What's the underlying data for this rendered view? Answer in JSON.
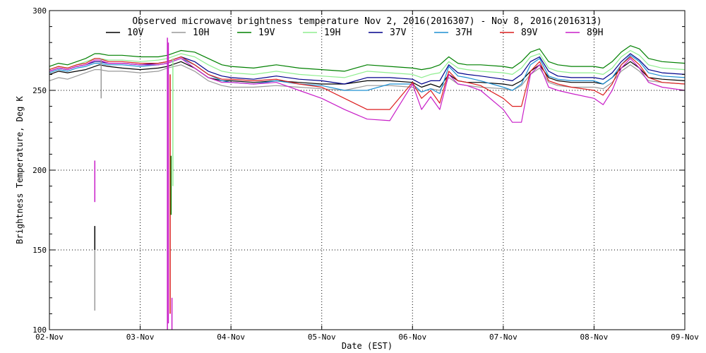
{
  "chart_data": {
    "type": "line",
    "title": "Observed microwave brightness temperature Nov  2, 2016(2016307) - Nov  8, 2016(2016313)",
    "xlabel": "Date (EST)",
    "ylabel": "Brightness Temperature, Deg K",
    "xlim": [
      0,
      7
    ],
    "ylim": [
      100,
      300
    ],
    "grid": true,
    "legend_position": "top",
    "x_ticks": [
      {
        "x": 0,
        "label": "02-Nov"
      },
      {
        "x": 1,
        "label": "03-Nov"
      },
      {
        "x": 2,
        "label": "04-Nov"
      },
      {
        "x": 3,
        "label": "05-Nov"
      },
      {
        "x": 4,
        "label": "06-Nov"
      },
      {
        "x": 5,
        "label": "07-Nov"
      },
      {
        "x": 6,
        "label": "08-Nov"
      },
      {
        "x": 7,
        "label": "09-Nov"
      }
    ],
    "y_ticks": [
      {
        "y": 100,
        "label": "100"
      },
      {
        "y": 150,
        "label": "150"
      },
      {
        "y": 200,
        "label": "200"
      },
      {
        "y": 250,
        "label": "250"
      },
      {
        "y": 300,
        "label": "300"
      }
    ],
    "series": [
      {
        "name": "10V",
        "color": "#000000",
        "x": [
          0,
          0.1,
          0.2,
          0.3,
          0.4,
          0.5,
          0.55,
          0.65,
          0.8,
          1,
          1.2,
          1.3,
          1.45,
          1.6,
          1.75,
          1.9,
          2,
          2.25,
          2.5,
          2.75,
          3,
          3.25,
          3.5,
          3.75,
          4,
          4.1,
          4.2,
          4.3,
          4.4,
          4.5,
          4.6,
          4.75,
          5,
          5.1,
          5.2,
          5.3,
          5.4,
          5.5,
          5.6,
          5.75,
          6,
          6.1,
          6.2,
          6.3,
          6.4,
          6.5,
          6.6,
          6.75,
          7
        ],
        "y": [
          260,
          262,
          261,
          262,
          263,
          265,
          266,
          265,
          264,
          263,
          264,
          265,
          268,
          264,
          258,
          256,
          256,
          255,
          256,
          255,
          254,
          254,
          256,
          256,
          255,
          252,
          254,
          252,
          260,
          256,
          255,
          255,
          254,
          253,
          256,
          262,
          266,
          258,
          256,
          255,
          255,
          254,
          258,
          264,
          268,
          264,
          258,
          257,
          256
        ]
      },
      {
        "name": "10H",
        "color": "#999999",
        "x": [
          0,
          0.1,
          0.2,
          0.3,
          0.4,
          0.5,
          0.55,
          0.65,
          0.8,
          1,
          1.2,
          1.3,
          1.45,
          1.6,
          1.75,
          1.9,
          2,
          2.25,
          2.5,
          2.75,
          3,
          3.25,
          3.5,
          3.75,
          4,
          4.1,
          4.2,
          4.3,
          4.4,
          4.5,
          4.6,
          4.75,
          5,
          5.1,
          5.2,
          5.3,
          5.4,
          5.5,
          5.6,
          5.75,
          6,
          6.1,
          6.2,
          6.3,
          6.4,
          6.5,
          6.6,
          6.75,
          7
        ],
        "y": [
          256,
          258,
          257,
          259,
          261,
          263,
          263,
          262,
          262,
          261,
          262,
          264,
          266,
          262,
          256,
          253,
          252,
          252,
          253,
          252,
          251,
          250,
          253,
          253,
          252,
          249,
          251,
          250,
          258,
          254,
          253,
          252,
          251,
          250,
          253,
          260,
          264,
          255,
          253,
          252,
          252,
          251,
          255,
          262,
          266,
          262,
          256,
          255,
          254
        ]
      },
      {
        "name": "19V",
        "color": "#008000",
        "x": [
          0,
          0.1,
          0.2,
          0.3,
          0.4,
          0.5,
          0.55,
          0.65,
          0.8,
          1,
          1.2,
          1.3,
          1.45,
          1.6,
          1.75,
          1.9,
          2,
          2.25,
          2.5,
          2.75,
          3,
          3.25,
          3.5,
          3.75,
          4,
          4.1,
          4.2,
          4.3,
          4.4,
          4.5,
          4.6,
          4.75,
          5,
          5.1,
          5.2,
          5.3,
          5.4,
          5.5,
          5.6,
          5.75,
          6,
          6.1,
          6.2,
          6.3,
          6.4,
          6.5,
          6.6,
          6.75,
          7
        ],
        "y": [
          265,
          267,
          266,
          268,
          270,
          273,
          273,
          272,
          272,
          271,
          271,
          272,
          275,
          274,
          270,
          266,
          265,
          264,
          266,
          264,
          263,
          262,
          266,
          265,
          264,
          263,
          264,
          266,
          271,
          267,
          266,
          266,
          265,
          264,
          268,
          274,
          276,
          268,
          266,
          265,
          265,
          264,
          268,
          274,
          278,
          276,
          270,
          268,
          267
        ]
      },
      {
        "name": "19H",
        "color": "#90ee90",
        "x": [
          0,
          0.1,
          0.2,
          0.3,
          0.4,
          0.5,
          0.55,
          0.65,
          0.8,
          1,
          1.2,
          1.3,
          1.45,
          1.6,
          1.75,
          1.9,
          2,
          2.25,
          2.5,
          2.75,
          3,
          3.25,
          3.5,
          3.75,
          4,
          4.1,
          4.2,
          4.3,
          4.4,
          4.5,
          4.6,
          4.75,
          5,
          5.1,
          5.2,
          5.3,
          5.4,
          5.5,
          5.6,
          5.75,
          6,
          6.1,
          6.2,
          6.3,
          6.4,
          6.5,
          6.6,
          6.75,
          7
        ],
        "y": [
          263,
          265,
          264,
          266,
          268,
          270,
          270,
          269,
          269,
          268,
          269,
          270,
          273,
          271,
          266,
          262,
          261,
          260,
          262,
          260,
          259,
          258,
          262,
          261,
          260,
          258,
          260,
          261,
          268,
          264,
          263,
          262,
          261,
          260,
          264,
          271,
          273,
          264,
          262,
          261,
          261,
          260,
          264,
          271,
          275,
          272,
          266,
          264,
          263
        ]
      },
      {
        "name": "37V",
        "color": "#00008b",
        "x": [
          0,
          0.1,
          0.2,
          0.3,
          0.4,
          0.5,
          0.55,
          0.65,
          0.8,
          1,
          1.2,
          1.3,
          1.45,
          1.6,
          1.75,
          1.9,
          2,
          2.25,
          2.5,
          2.75,
          3,
          3.25,
          3.5,
          3.75,
          4,
          4.1,
          4.2,
          4.3,
          4.4,
          4.5,
          4.6,
          4.75,
          5,
          5.1,
          5.2,
          5.3,
          5.4,
          5.5,
          5.6,
          5.75,
          6,
          6.1,
          6.2,
          6.3,
          6.4,
          6.5,
          6.6,
          6.75,
          7
        ],
        "y": [
          262,
          264,
          263,
          265,
          266,
          268,
          268,
          267,
          267,
          266,
          267,
          268,
          271,
          268,
          262,
          259,
          258,
          257,
          259,
          257,
          256,
          254,
          258,
          258,
          257,
          254,
          256,
          256,
          266,
          261,
          260,
          259,
          257,
          256,
          260,
          268,
          271,
          262,
          259,
          258,
          258,
          257,
          261,
          268,
          273,
          269,
          263,
          261,
          260
        ]
      },
      {
        "name": "37H",
        "color": "#1e90d2",
        "x": [
          0,
          0.1,
          0.2,
          0.3,
          0.4,
          0.5,
          0.55,
          0.65,
          0.8,
          1,
          1.2,
          1.3,
          1.45,
          1.6,
          1.75,
          1.9,
          2,
          2.25,
          2.5,
          2.75,
          3,
          3.25,
          3.5,
          3.75,
          4,
          4.1,
          4.2,
          4.3,
          4.4,
          4.5,
          4.6,
          4.75,
          5,
          5.1,
          5.2,
          5.3,
          5.4,
          5.5,
          5.6,
          5.75,
          6,
          6.1,
          6.2,
          6.3,
          6.4,
          6.5,
          6.6,
          6.75,
          7
        ],
        "y": [
          261,
          263,
          262,
          264,
          265,
          267,
          267,
          266,
          266,
          265,
          266,
          267,
          270,
          266,
          260,
          256,
          255,
          254,
          256,
          254,
          253,
          250,
          250,
          254,
          254,
          249,
          251,
          248,
          265,
          259,
          258,
          256,
          252,
          250,
          254,
          266,
          270,
          259,
          257,
          256,
          256,
          254,
          258,
          266,
          272,
          268,
          261,
          259,
          258
        ]
      },
      {
        "name": "89V",
        "color": "#dc1e1e",
        "x": [
          0,
          0.1,
          0.2,
          0.3,
          0.4,
          0.5,
          0.55,
          0.65,
          0.8,
          1,
          1.2,
          1.3,
          1.45,
          1.6,
          1.75,
          1.9,
          2,
          2.25,
          2.5,
          2.75,
          3,
          3.25,
          3.5,
          3.75,
          4,
          4.1,
          4.2,
          4.3,
          4.4,
          4.5,
          4.6,
          4.75,
          5,
          5.1,
          5.2,
          5.3,
          5.4,
          5.5,
          5.6,
          5.75,
          6,
          6.1,
          6.2,
          6.3,
          6.4,
          6.5,
          6.6,
          6.75,
          7
        ],
        "y": [
          263,
          265,
          264,
          266,
          267,
          270,
          270,
          268,
          268,
          267,
          267,
          268,
          271,
          266,
          260,
          257,
          257,
          256,
          257,
          254,
          252,
          245,
          238,
          238,
          255,
          245,
          250,
          242,
          262,
          256,
          255,
          253,
          245,
          240,
          240,
          262,
          268,
          256,
          254,
          252,
          250,
          247,
          254,
          266,
          271,
          266,
          258,
          255,
          254
        ]
      },
      {
        "name": "89H",
        "color": "#c81ec8",
        "x": [
          0,
          0.1,
          0.2,
          0.3,
          0.4,
          0.5,
          0.55,
          0.65,
          0.8,
          1,
          1.2,
          1.3,
          1.45,
          1.6,
          1.75,
          1.9,
          2,
          2.25,
          2.5,
          2.75,
          3,
          3.25,
          3.5,
          3.75,
          4,
          4.1,
          4.2,
          4.3,
          4.4,
          4.5,
          4.6,
          4.75,
          5,
          5.1,
          5.2,
          5.3,
          5.4,
          5.5,
          5.6,
          5.75,
          6,
          6.1,
          6.2,
          6.3,
          6.4,
          6.5,
          6.6,
          6.75,
          7
        ],
        "y": [
          262,
          264,
          263,
          265,
          266,
          269,
          269,
          267,
          267,
          266,
          266,
          267,
          270,
          264,
          258,
          255,
          255,
          254,
          255,
          250,
          245,
          238,
          232,
          231,
          254,
          238,
          246,
          238,
          260,
          254,
          253,
          250,
          238,
          230,
          230,
          260,
          266,
          252,
          250,
          248,
          245,
          241,
          250,
          264,
          270,
          264,
          255,
          252,
          250
        ]
      }
    ],
    "spikes": [
      {
        "x": 0.5,
        "y_low": 180,
        "y_high": 206,
        "color": "#c81ec8"
      },
      {
        "x": 0.5,
        "y_low": 150,
        "y_high": 165,
        "color": "#000000"
      },
      {
        "x": 0.5,
        "y_low": 112,
        "y_high": 150,
        "color": "#999999"
      },
      {
        "x": 0.57,
        "y_low": 245,
        "y_high": 270,
        "color": "#999999"
      },
      {
        "x": 1.3,
        "y_low": 100,
        "y_high": 283,
        "color": "#c81ec8"
      },
      {
        "x": 1.31,
        "y_low": 104,
        "y_high": 280,
        "color": "#c81ec8"
      },
      {
        "x": 1.33,
        "y_low": 110,
        "y_high": 260,
        "color": "#dc1e1e"
      },
      {
        "x": 1.34,
        "y_low": 172,
        "y_high": 209,
        "color": "#008000"
      },
      {
        "x": 1.35,
        "y_low": 100,
        "y_high": 120,
        "color": "#c81ec8"
      },
      {
        "x": 1.36,
        "y_low": 190,
        "y_high": 270,
        "color": "#90ee90"
      }
    ]
  }
}
